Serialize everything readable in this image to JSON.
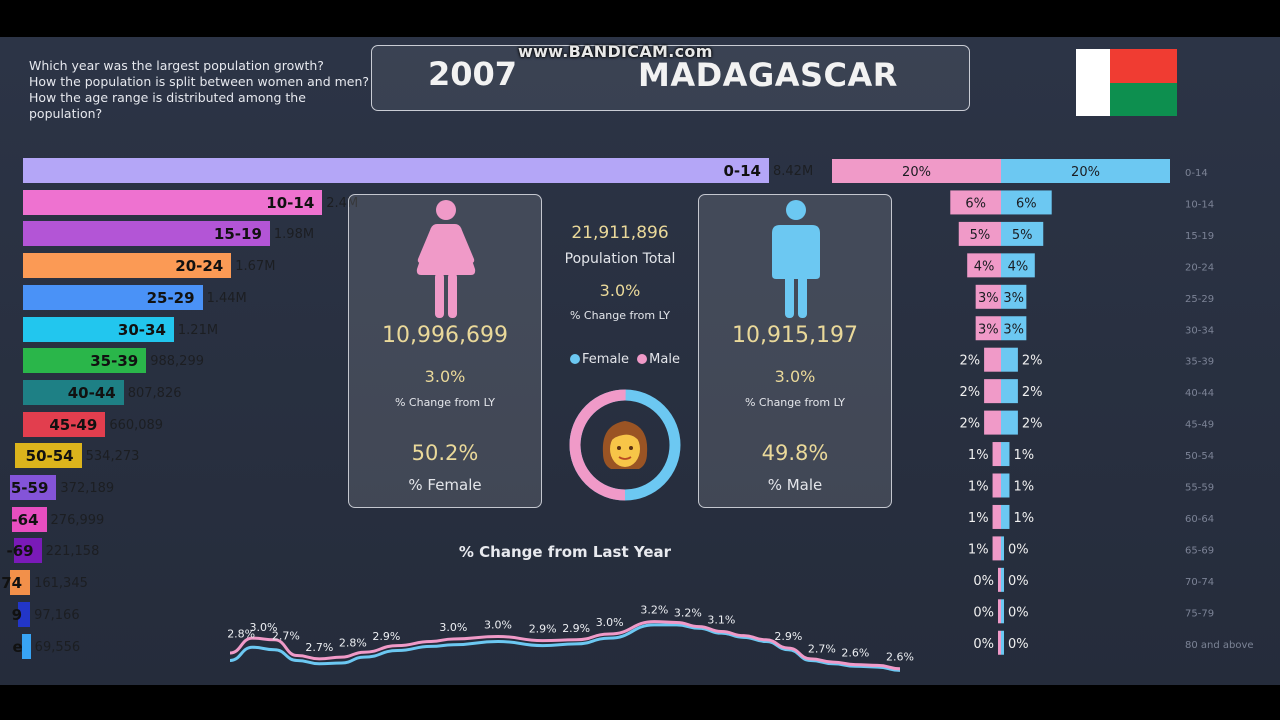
{
  "header": {
    "questions": [
      "Which year was the largest population growth?",
      "How the population is split between women and men?",
      "How the age range is distributed among the",
      "population?"
    ],
    "year": "2007",
    "country": "MADAGASCAR",
    "watermark": "www.BANDICAM.com"
  },
  "colors": {
    "female": "#f09ac8",
    "male": "#6cc8f2",
    "accent_text": "#ead99a",
    "flag_red": "#f03c32",
    "flag_green": "#0d8f4f",
    "flag_white": "#ffffff"
  },
  "age_bars": [
    {
      "label": "0-14",
      "value": "8.42M",
      "shown": "0-14",
      "color": "#b4a6f7"
    },
    {
      "label": "10-14",
      "value": "2.4M",
      "shown": "10-14",
      "color": "#ee72d0"
    },
    {
      "label": "15-19",
      "value": "1.98M",
      "shown": "15-19",
      "color": "#b355d6"
    },
    {
      "label": "20-24",
      "value": "1.67M",
      "shown": "20-24",
      "color": "#fb9a55"
    },
    {
      "label": "25-29",
      "value": "1.44M",
      "shown": "25-29",
      "color": "#4a92f7"
    },
    {
      "label": "30-34",
      "value": "1.21M",
      "shown": "30-34",
      "color": "#22c6ee"
    },
    {
      "label": "35-39",
      "value": "988,299",
      "shown": "35-39",
      "color": "#2ab64a"
    },
    {
      "label": "40-44",
      "value": "807,826",
      "shown": "40-44",
      "color": "#1e8085"
    },
    {
      "label": "45-49",
      "value": "660,089",
      "shown": "45-49",
      "color": "#e23e4e"
    },
    {
      "label": "50-54",
      "value": "534,273",
      "shown": "50-54",
      "color": "#dcb41c"
    },
    {
      "label": "55-59",
      "value": "372,189",
      "shown": "5-59",
      "color": "#8454d8"
    },
    {
      "label": "60-64",
      "value": "276,999",
      "shown": "-64",
      "color": "#e84ec0"
    },
    {
      "label": "65-69",
      "value": "221,158",
      "shown": "-69",
      "color": "#7a1ab8"
    },
    {
      "label": "70-74",
      "value": "161,345",
      "shown": "74",
      "color": "#f2904a"
    },
    {
      "label": "75-79",
      "value": "97,166",
      "shown": "9",
      "color": "#2236c8"
    },
    {
      "label": "80 and above",
      "value": "69,556",
      "shown": "e",
      "color": "#38a4f5"
    }
  ],
  "age_values_numeric": [
    8420000,
    2400000,
    1980000,
    1670000,
    1440000,
    1210000,
    988299,
    807826,
    660089,
    534273,
    372189,
    276999,
    221158,
    161345,
    97166,
    69556
  ],
  "female_card": {
    "total": "10,996,699",
    "change": "3.0%",
    "change_label": "% Change from LY",
    "share": "50.2%",
    "share_label": "% Female",
    "icon": "female-person-icon"
  },
  "male_card": {
    "total": "10,915,197",
    "change": "3.0%",
    "change_label": "% Change from LY",
    "share": "49.8%",
    "share_label": "% Male",
    "icon": "male-person-icon"
  },
  "center": {
    "total": "21,911,896",
    "total_label": "Population Total",
    "change": "3.0%",
    "change_label": "% Change from LY",
    "legend_female": "Female",
    "legend_male": "Male",
    "donut_icon": "woman-face-icon",
    "donut_female_share": 50.2,
    "donut_male_share": 49.8
  },
  "chart_data": [
    {
      "type": "bar",
      "orientation": "horizontal",
      "categories": [
        "0-14",
        "10-14",
        "15-19",
        "20-24",
        "25-29",
        "30-34",
        "35-39",
        "40-44",
        "45-49",
        "50-54",
        "55-59",
        "60-64",
        "65-69",
        "70-74",
        "75-79",
        "80 and above"
      ],
      "values": [
        8420000,
        2400000,
        1980000,
        1670000,
        1440000,
        1210000,
        988299,
        807826,
        660089,
        534273,
        372189,
        276999,
        221158,
        161345,
        97166,
        69556
      ]
    },
    {
      "type": "bar",
      "orientation": "horizontal-diverging",
      "categories": [
        "0-14",
        "10-14",
        "15-19",
        "20-24",
        "25-29",
        "30-34",
        "35-39",
        "40-44",
        "45-49",
        "50-54",
        "55-59",
        "60-64",
        "65-69",
        "70-74",
        "75-79",
        "80 and above"
      ],
      "series": [
        {
          "name": "Female",
          "values": [
            20,
            6,
            5,
            4,
            3,
            3,
            2,
            2,
            2,
            1,
            1,
            1,
            1,
            0,
            0,
            0
          ],
          "labels": [
            "20%",
            "6%",
            "5%",
            "4%",
            "3%",
            "3%",
            "2%",
            "2%",
            "2%",
            "1%",
            "1%",
            "1%",
            "1%",
            "0%",
            "0%",
            "0%"
          ]
        },
        {
          "name": "Male",
          "values": [
            20,
            6,
            5,
            4,
            3,
            3,
            2,
            2,
            2,
            1,
            1,
            1,
            0,
            0,
            0,
            0
          ],
          "labels": [
            "20%",
            "6%",
            "5%",
            "4%",
            "3%",
            "3%",
            "2%",
            "2%",
            "2%",
            "1%",
            "1%",
            "1%",
            "0%",
            "0%",
            "0%",
            "0%"
          ]
        }
      ]
    },
    {
      "type": "line",
      "title": "% Change from Last Year",
      "xlim": [
        1960,
        2020
      ],
      "x_ticks": [
        "1960",
        "1970",
        "1980",
        "1990",
        "2000",
        "2010",
        "2020"
      ],
      "series": [
        {
          "name": "Female",
          "x": [
            1960,
            1962,
            1964,
            1966,
            1968,
            1970,
            1972,
            1975,
            1978,
            1980,
            1984,
            1988,
            1991,
            1994,
            1998,
            2000,
            2002,
            2004,
            2006,
            2008,
            2010,
            2012,
            2014,
            2016,
            2018,
            2020
          ],
          "values": [
            2.79,
            2.97,
            2.95,
            2.76,
            2.72,
            2.74,
            2.8,
            2.88,
            2.93,
            2.96,
            2.99,
            2.94,
            2.95,
            3.02,
            3.17,
            3.16,
            3.11,
            3.05,
            3.0,
            2.95,
            2.85,
            2.72,
            2.68,
            2.65,
            2.64,
            2.6
          ]
        },
        {
          "name": "Male",
          "x": [
            1960,
            1962,
            1964,
            1966,
            1968,
            1970,
            1972,
            1975,
            1978,
            1980,
            1984,
            1988,
            1991,
            1994,
            1998,
            2000,
            2002,
            2004,
            2006,
            2008,
            2010,
            2012,
            2014,
            2016,
            2018,
            2020
          ],
          "values": [
            2.7,
            2.86,
            2.83,
            2.7,
            2.66,
            2.67,
            2.74,
            2.82,
            2.87,
            2.89,
            2.93,
            2.88,
            2.9,
            2.97,
            3.13,
            3.13,
            3.09,
            3.03,
            2.98,
            2.93,
            2.83,
            2.7,
            2.66,
            2.63,
            2.62,
            2.58
          ]
        }
      ],
      "labels": [
        {
          "x": 1961,
          "text": "2.8%"
        },
        {
          "x": 1963,
          "text": "3.0%"
        },
        {
          "x": 1965,
          "text": "2.7%"
        },
        {
          "x": 1968,
          "text": "2.7%"
        },
        {
          "x": 1971,
          "text": "2.8%"
        },
        {
          "x": 1974,
          "text": "2.9%"
        },
        {
          "x": 1980,
          "text": "3.0%"
        },
        {
          "x": 1984,
          "text": "3.0%"
        },
        {
          "x": 1988,
          "text": "2.9%"
        },
        {
          "x": 1991,
          "text": "2.9%"
        },
        {
          "x": 1994,
          "text": "3.0%"
        },
        {
          "x": 1998,
          "text": "3.2%"
        },
        {
          "x": 2001,
          "text": "3.2%"
        },
        {
          "x": 2004,
          "text": "3.1%"
        },
        {
          "x": 2010,
          "text": "2.9%"
        },
        {
          "x": 2013,
          "text": "2.7%"
        },
        {
          "x": 2016,
          "text": "2.6%"
        },
        {
          "x": 2020,
          "text": "2.6%"
        }
      ]
    }
  ]
}
